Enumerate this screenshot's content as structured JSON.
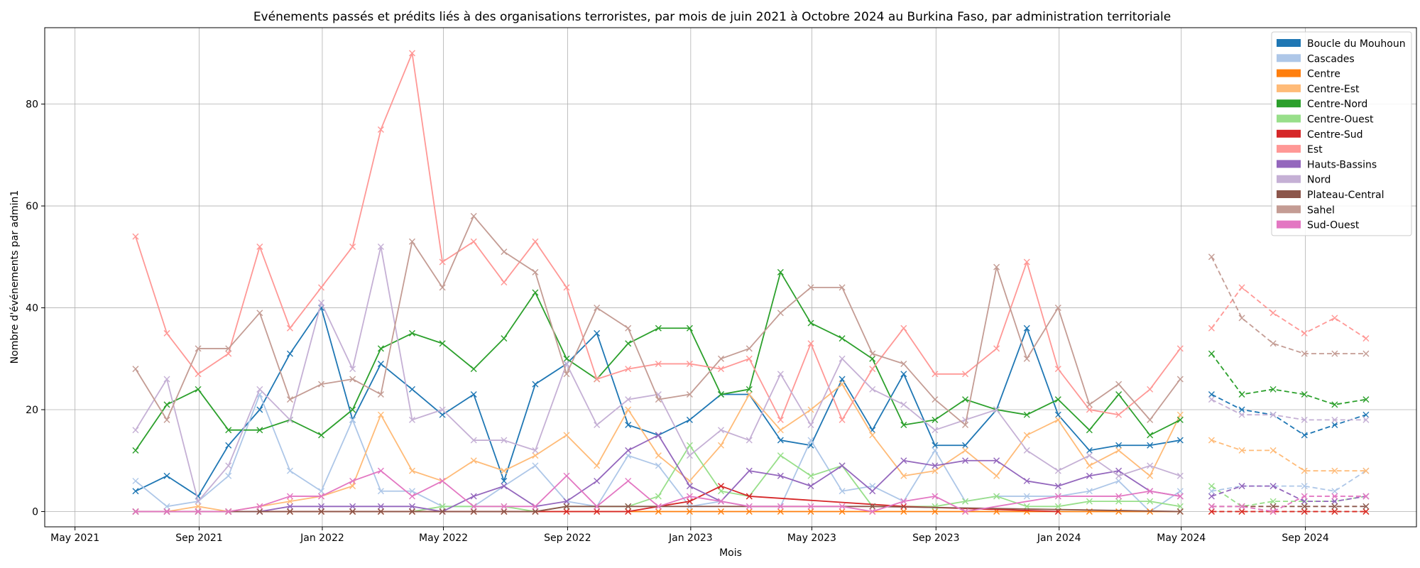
{
  "chart_data": {
    "type": "line",
    "title": "Evénements passés et prédits liés à des organisations terroristes, par mois de juin 2021 à Octobre 2024 au Burkina Faso, par administration territoriale",
    "xlabel": "Mois",
    "ylabel": "Nombre d'événements par admin1",
    "xlim": [
      "2021-04-01",
      "2024-12-20"
    ],
    "ylim": [
      -3,
      95
    ],
    "x_ticks": [
      {
        "date": "2021-05-01",
        "label": "May 2021"
      },
      {
        "date": "2021-09-01",
        "label": "Sep 2021"
      },
      {
        "date": "2022-01-01",
        "label": "Jan 2022"
      },
      {
        "date": "2022-05-01",
        "label": "May 2022"
      },
      {
        "date": "2022-09-01",
        "label": "Sep 2022"
      },
      {
        "date": "2023-01-01",
        "label": "Jan 2023"
      },
      {
        "date": "2023-05-01",
        "label": "May 2023"
      },
      {
        "date": "2023-09-01",
        "label": "Sep 2023"
      },
      {
        "date": "2024-01-01",
        "label": "Jan 2024"
      },
      {
        "date": "2024-05-01",
        "label": "May 2024"
      },
      {
        "date": "2024-09-01",
        "label": "Sep 2024"
      }
    ],
    "y_ticks": [
      0,
      20,
      40,
      60,
      80
    ],
    "grid": true,
    "legend_position": "top-right",
    "marker": "x",
    "past_x": [
      "2021-06-30",
      "2021-07-31",
      "2021-08-31",
      "2021-09-30",
      "2021-10-31",
      "2021-11-30",
      "2021-12-31",
      "2022-01-31",
      "2022-02-28",
      "2022-03-31",
      "2022-04-30",
      "2022-05-31",
      "2022-06-30",
      "2022-07-31",
      "2022-08-31",
      "2022-09-30",
      "2022-10-31",
      "2022-11-30",
      "2022-12-31",
      "2023-01-31",
      "2023-02-28",
      "2023-03-31",
      "2023-04-30",
      "2023-05-31",
      "2023-06-30",
      "2023-07-31",
      "2023-08-31",
      "2023-09-30",
      "2023-10-31",
      "2023-11-30",
      "2023-12-31",
      "2024-01-31",
      "2024-02-29",
      "2024-03-31",
      "2024-04-30"
    ],
    "pred_x": [
      "2024-05-31",
      "2024-06-30",
      "2024-07-31",
      "2024-08-31",
      "2024-09-30",
      "2024-10-31"
    ],
    "series": [
      {
        "name": "Boucle du Mouhoun",
        "color": "#1f77b4",
        "past": [
          4,
          7,
          3,
          13,
          20,
          31,
          40,
          18,
          29,
          24,
          19,
          23,
          6,
          25,
          29,
          35,
          17,
          15,
          18,
          23,
          23,
          14,
          13,
          26,
          16,
          27,
          13,
          13,
          20,
          36,
          19,
          12,
          13,
          13,
          14
        ],
        "pred": [
          23,
          20,
          19,
          15,
          17,
          19
        ]
      },
      {
        "name": "Cascades",
        "color": "#aec7e8",
        "past": [
          6,
          1,
          2,
          7,
          23,
          8,
          4,
          18,
          4,
          4,
          1,
          1,
          5,
          9,
          2,
          1,
          11,
          9,
          1,
          2,
          1,
          1,
          14,
          4,
          5,
          2,
          12,
          2,
          3,
          3,
          3,
          4,
          6,
          0,
          4
        ],
        "pred": [
          4,
          5,
          5,
          5,
          4,
          8
        ]
      },
      {
        "name": "Centre",
        "color": "#ff7f0e",
        "past": [
          0,
          0,
          0,
          0,
          0,
          0,
          0,
          0,
          0,
          0,
          0,
          0,
          0,
          0,
          0,
          0,
          0,
          0,
          0,
          0,
          0,
          0,
          0,
          0,
          0,
          0,
          0,
          0,
          0,
          0,
          0,
          0,
          0,
          0,
          0
        ],
        "pred": [
          0,
          0,
          0,
          0,
          0,
          0
        ]
      },
      {
        "name": "Centre-Est",
        "color": "#ffbb78",
        "past": [
          0,
          0,
          1,
          0,
          1,
          2,
          3,
          5,
          19,
          8,
          6,
          10,
          8,
          11,
          15,
          9,
          20,
          11,
          6,
          13,
          23,
          16,
          20,
          25,
          15,
          7,
          8,
          12,
          7,
          15,
          18,
          9,
          12,
          7,
          19
        ],
        "pred": [
          14,
          12,
          12,
          8,
          8,
          8
        ]
      },
      {
        "name": "Centre-Nord",
        "color": "#2ca02c",
        "past": [
          12,
          21,
          24,
          16,
          16,
          18,
          15,
          20,
          32,
          35,
          33,
          28,
          34,
          43,
          30,
          26,
          33,
          36,
          36,
          23,
          24,
          47,
          37,
          34,
          30,
          17,
          18,
          22,
          20,
          19,
          22,
          16,
          23,
          15,
          18
        ],
        "pred": [
          31,
          23,
          24,
          23,
          21,
          22
        ]
      },
      {
        "name": "Centre-Ouest",
        "color": "#98df8a",
        "past": [
          0,
          0,
          0,
          0,
          0,
          0,
          0,
          0,
          0,
          0,
          1,
          1,
          1,
          0,
          1,
          1,
          1,
          3,
          13,
          4,
          3,
          11,
          7,
          9,
          1,
          1,
          1,
          2,
          3,
          1,
          1,
          2,
          2,
          2,
          1
        ],
        "pred": [
          5,
          1,
          2,
          2,
          2,
          3
        ]
      },
      {
        "name": "Centre-Sud",
        "color": "#d62728",
        "past": [
          0,
          0,
          0,
          0,
          0,
          0,
          0,
          0,
          0,
          0,
          0,
          0,
          0,
          0,
          0,
          0,
          0,
          1,
          2,
          5,
          3,
          null,
          null,
          null,
          null,
          1,
          null,
          null,
          null,
          null,
          0,
          null,
          null,
          null,
          null
        ],
        "pred": [
          0,
          0,
          0,
          0,
          0,
          0
        ]
      },
      {
        "name": "Est",
        "color": "#ff9896",
        "past": [
          54,
          35,
          27,
          31,
          52,
          36,
          44,
          52,
          75,
          90,
          49,
          53,
          45,
          53,
          44,
          26,
          28,
          29,
          29,
          28,
          30,
          18,
          33,
          18,
          28,
          36,
          27,
          27,
          32,
          49,
          28,
          20,
          19,
          24,
          32
        ],
        "pred": [
          36,
          44,
          39,
          35,
          38,
          34
        ]
      },
      {
        "name": "Hauts-Bassins",
        "color": "#9467bd",
        "past": [
          0,
          0,
          0,
          0,
          0,
          1,
          1,
          1,
          1,
          1,
          0,
          3,
          5,
          1,
          2,
          6,
          12,
          15,
          5,
          2,
          8,
          7,
          5,
          9,
          4,
          10,
          9,
          10,
          10,
          6,
          5,
          7,
          8,
          4,
          3
        ],
        "pred": [
          3,
          5,
          5,
          2,
          2,
          3
        ]
      },
      {
        "name": "Nord",
        "color": "#c5b0d5",
        "past": [
          16,
          26,
          2,
          9,
          24,
          18,
          41,
          28,
          52,
          18,
          20,
          14,
          14,
          12,
          29,
          17,
          22,
          23,
          11,
          16,
          14,
          27,
          17,
          30,
          24,
          21,
          16,
          18,
          20,
          12,
          8,
          11,
          7,
          9,
          7
        ],
        "pred": [
          22,
          19,
          19,
          18,
          18,
          18
        ]
      },
      {
        "name": "Plateau-Central",
        "color": "#8c564b",
        "past": [
          0,
          0,
          0,
          0,
          0,
          0,
          0,
          0,
          0,
          0,
          0,
          0,
          0,
          0,
          1,
          1,
          1,
          null,
          null,
          null,
          null,
          null,
          null,
          null,
          1,
          null,
          null,
          null,
          null,
          null,
          null,
          null,
          null,
          null,
          0
        ],
        "pred": [
          1,
          1,
          1,
          1,
          1,
          1
        ]
      },
      {
        "name": "Sahel",
        "color": "#c49c94",
        "past": [
          28,
          18,
          32,
          32,
          39,
          22,
          25,
          26,
          23,
          53,
          44,
          58,
          51,
          47,
          27,
          40,
          36,
          22,
          23,
          30,
          32,
          39,
          44,
          44,
          31,
          29,
          22,
          17,
          48,
          30,
          40,
          21,
          25,
          18,
          26
        ],
        "pred": [
          50,
          38,
          33,
          31,
          31,
          31
        ]
      },
      {
        "name": "Sud-Ouest",
        "color": "#e377c2",
        "past": [
          0,
          0,
          0,
          0,
          1,
          3,
          3,
          6,
          8,
          3,
          6,
          1,
          1,
          1,
          7,
          1,
          6,
          1,
          3,
          2,
          1,
          1,
          1,
          1,
          0,
          2,
          3,
          0,
          null,
          null,
          3,
          null,
          3,
          4,
          3
        ],
        "pred": [
          1,
          1,
          0,
          3,
          3,
          3
        ]
      }
    ]
  }
}
